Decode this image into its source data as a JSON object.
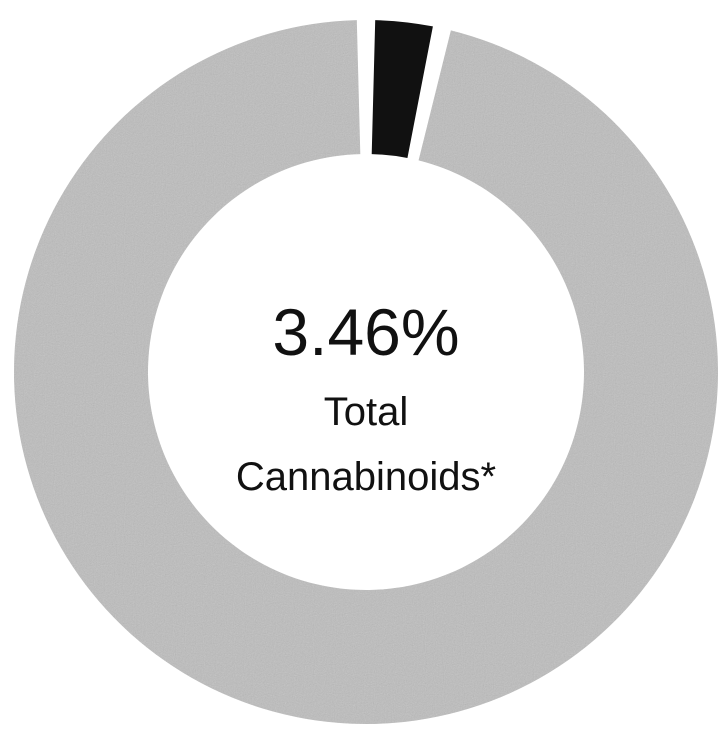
{
  "chart_data": {
    "type": "pie",
    "style": "donut",
    "slices": [
      {
        "value": 3.46,
        "color": "#111111"
      },
      {
        "value": 96.54,
        "color": "#bdbdbd"
      }
    ],
    "center_value": "3.46%",
    "center_label_lines": [
      "Total",
      "Cannabinoids*"
    ],
    "gap_color": "#ffffff"
  }
}
